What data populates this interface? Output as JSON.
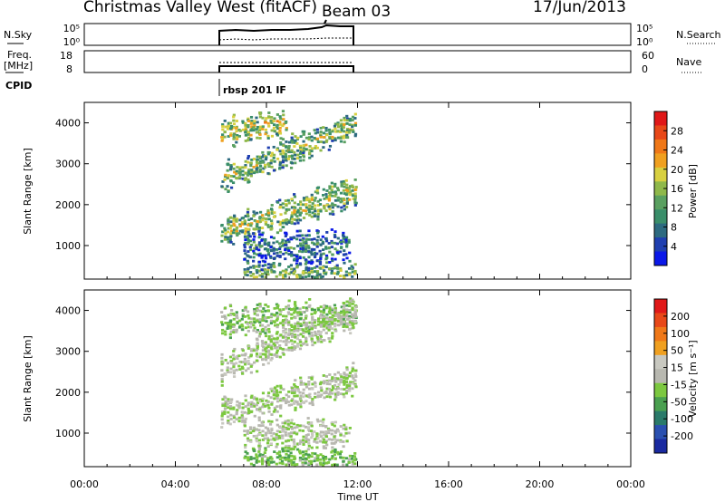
{
  "header": {
    "title": "Christmas Valley West (fitACF)",
    "beam": "Beam 03",
    "date": "17/Jun/2013"
  },
  "panels": {
    "nsky": {
      "left_label": "N.Sky",
      "left_ticks": [
        "10^5",
        "10^0"
      ],
      "right_ticks": [
        "10^5",
        "10^0"
      ],
      "right_label": "N.Search"
    },
    "freq": {
      "left_label_1": "Freq.",
      "left_label_2": "[MHz]",
      "left_ticks": [
        "18",
        "8"
      ],
      "right_ticks": [
        "60",
        "0"
      ],
      "right_label": "Nave"
    },
    "cpid": {
      "label": "CPID",
      "program": "rbsp 201 IF"
    }
  },
  "axes": {
    "x_label": "Time UT",
    "x_ticks": [
      "00:00",
      "04:00",
      "08:00",
      "12:00",
      "16:00",
      "20:00",
      "00:00"
    ],
    "y_label": "Slant Range [km]",
    "y_ticks": [
      "1000",
      "2000",
      "3000",
      "4000"
    ]
  },
  "colorbars": {
    "power": {
      "label": "Power [dB]",
      "ticks": [
        "4",
        "8",
        "12",
        "16",
        "20",
        "24",
        "28"
      ],
      "colors": [
        "#0a18e8",
        "#1f3fb0",
        "#2d6a80",
        "#3a8e6a",
        "#5aa060",
        "#8fb84a",
        "#d8d040",
        "#f0a020",
        "#f07818",
        "#e84818",
        "#e01818"
      ]
    },
    "velocity": {
      "label": "Velocity [m s⁻¹]",
      "ticks": [
        "200",
        "100",
        "50",
        "15",
        "-15",
        "-50",
        "-100",
        "-200"
      ],
      "colors": [
        "#1a2aa0",
        "#2a50b0",
        "#2a7a6a",
        "#4aa050",
        "#7cc840",
        "#b8b8b0",
        "#c8c8c0",
        "#f0a020",
        "#f07818",
        "#e84818",
        "#e01818"
      ]
    }
  },
  "chart_data": [
    {
      "type": "heatmap",
      "title": "Power [dB]",
      "xlabel": "Time UT",
      "ylabel": "Slant Range [km]",
      "xlim": [
        0,
        24
      ],
      "ylim": [
        180,
        4500
      ],
      "zlim": [
        0,
        32
      ],
      "features": [
        {
          "start_hour": 6.0,
          "end_hour": 9.0,
          "range_start": 3800,
          "range_end": 4000,
          "mean_dB": 18
        },
        {
          "start_hour": 6.0,
          "end_hour": 12.0,
          "range_start": 2650,
          "range_end": 4000,
          "mean_dB": 16
        },
        {
          "start_hour": 6.0,
          "end_hour": 12.0,
          "range_start": 1350,
          "range_end": 2350,
          "mean_dB": 17
        },
        {
          "start_hour": 7.0,
          "end_hour": 11.8,
          "range_start": 1000,
          "range_end": 1000,
          "mean_dB": 10
        },
        {
          "start_hour": 7.0,
          "end_hour": 12.0,
          "range_start": 300,
          "range_end": 300,
          "mean_dB": 14
        }
      ]
    },
    {
      "type": "heatmap",
      "title": "Velocity [m s⁻¹]",
      "xlabel": "Time UT",
      "ylabel": "Slant Range [km]",
      "xlim": [
        0,
        24
      ],
      "ylim": [
        180,
        4500
      ],
      "zlim": [
        -250,
        250
      ],
      "features": [
        {
          "start_hour": 6.0,
          "end_hour": 12.0,
          "range_start": 3750,
          "range_end": 3950,
          "mean_ms": -40
        },
        {
          "start_hour": 6.0,
          "end_hour": 12.0,
          "range_start": 2600,
          "range_end": 3950,
          "mean_ms": -10
        },
        {
          "start_hour": 6.0,
          "end_hour": 12.0,
          "range_start": 1500,
          "range_end": 2350,
          "mean_ms": -10
        },
        {
          "start_hour": 7.0,
          "end_hour": 11.8,
          "range_start": 1000,
          "range_end": 1000,
          "mean_ms": -5
        },
        {
          "start_hour": 7.0,
          "end_hour": 12.0,
          "range_start": 300,
          "range_end": 300,
          "mean_ms": -60
        }
      ]
    }
  ]
}
